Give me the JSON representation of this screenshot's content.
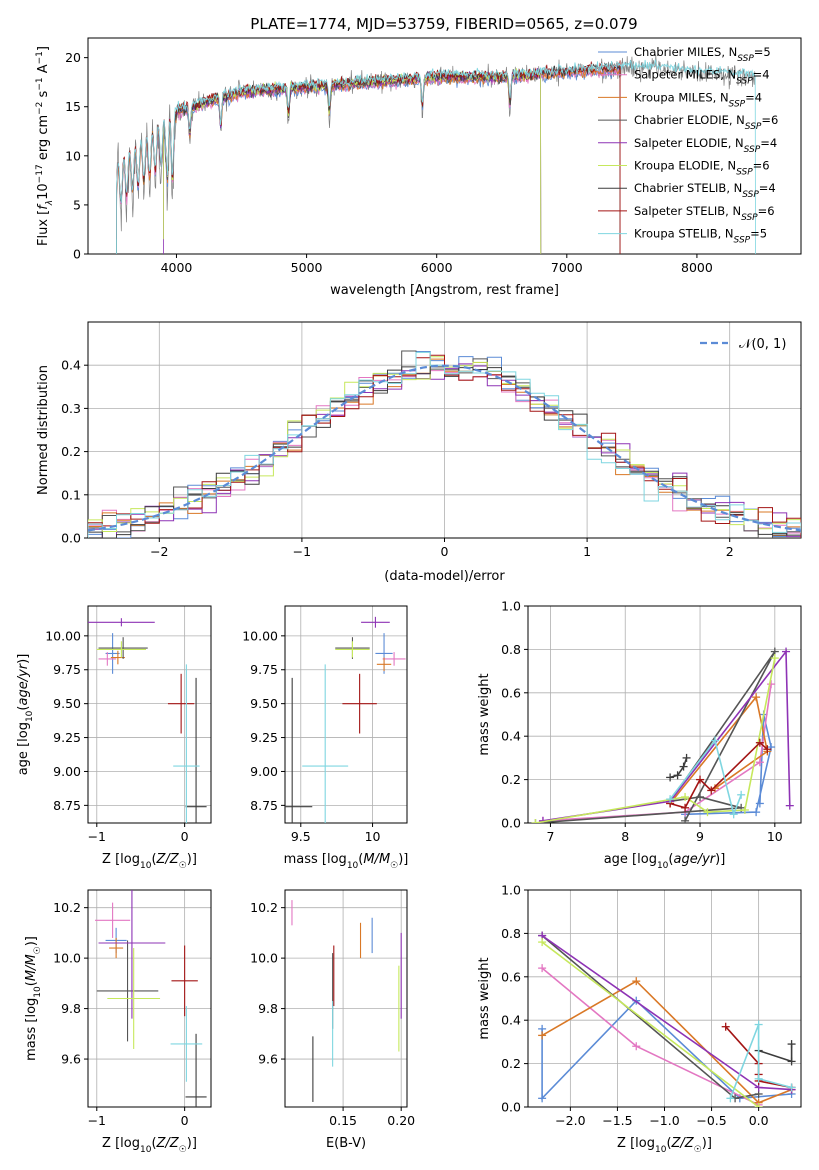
{
  "figure_title": "PLATE=1774, MJD=53759, FIBERID=0565, z=0.079",
  "colors": [
    "#5b8bd6",
    "#e377c2",
    "#d97826",
    "#555555",
    "#8e33b5",
    "#c6e85c",
    "#3c3c3c",
    "#a31515",
    "#7fd6e0"
  ],
  "chart_data": [
    {
      "id": "spectrum",
      "type": "line",
      "xlabel": "wavelength [Angstrom, rest frame]",
      "ylabel": "Flux [fλ10⁻¹⁷ erg cm⁻² s⁻¹ A⁻¹]",
      "xlim": [
        3320,
        8800
      ],
      "ylim": [
        0,
        22
      ],
      "xticks": [
        4000,
        5000,
        6000,
        7000,
        8000
      ],
      "yticks": [
        0,
        5,
        10,
        15,
        20
      ],
      "legend_position": "top-right",
      "series": [
        {
          "name": "Chabrier MILES, N_SSP=5",
          "color": "#5b8bd6",
          "range": [
            3540,
            7410
          ]
        },
        {
          "name": "Salpeter MILES, N_SSP=4",
          "color": "#e377c2",
          "range": [
            3540,
            7410
          ]
        },
        {
          "name": "Kroupa MILES, N_SSP=4",
          "color": "#d97826",
          "range": [
            3540,
            7410
          ]
        },
        {
          "name": "Chabrier ELODIE, N_SSP=6",
          "color": "#555555",
          "range": [
            3900,
            6800
          ]
        },
        {
          "name": "Salpeter ELODIE, N_SSP=4",
          "color": "#8e33b5",
          "range": [
            3900,
            6800
          ]
        },
        {
          "name": "Kroupa ELODIE, N_SSP=6",
          "color": "#c6e85c",
          "range": [
            3900,
            6800
          ]
        },
        {
          "name": "Chabrier STELIB, N_SSP=4",
          "color": "#3c3c3c",
          "range": [
            3540,
            7410
          ]
        },
        {
          "name": "Salpeter STELIB, N_SSP=6",
          "color": "#a31515",
          "range": [
            3540,
            7410
          ]
        },
        {
          "name": "Kroupa STELIB, N_SSP=5",
          "color": "#7fd6e0",
          "range": [
            3540,
            8450
          ]
        }
      ],
      "data_range": [
        3540,
        8450
      ],
      "data_flux_level": [
        [
          3540,
          9
        ],
        [
          3800,
          12
        ],
        [
          4000,
          14.5
        ],
        [
          4500,
          16.5
        ],
        [
          5000,
          17
        ],
        [
          5500,
          17.5
        ],
        [
          6000,
          18
        ],
        [
          6500,
          18
        ],
        [
          7000,
          18.5
        ],
        [
          7500,
          19
        ],
        [
          8000,
          18.5
        ],
        [
          8450,
          18
        ]
      ]
    },
    {
      "id": "residuals",
      "type": "histogram",
      "xlabel": "(data-model)/error",
      "ylabel": "Normed distribution",
      "xlim": [
        -2.5,
        2.5
      ],
      "ylim": [
        0,
        0.5
      ],
      "xticks": [
        -2,
        -1,
        0,
        1,
        2
      ],
      "yticks": [
        0.0,
        0.1,
        0.2,
        0.3,
        0.4
      ],
      "bin_width": 0.1,
      "reference_curve": "N(0,1)",
      "legend": "𝒩(0, 1)",
      "legend_position": "top-right"
    },
    {
      "id": "age-vs-Z",
      "type": "errorbar",
      "xlabel": "Z [log₁₀(Z/Z☉)]",
      "ylabel": "age  [log₁₀(age/yr)]",
      "xlim": [
        -1.1,
        0.3
      ],
      "ylim": [
        8.62,
        10.22
      ],
      "xticks": [
        -1,
        0
      ],
      "yticks": [
        8.75,
        9.0,
        9.25,
        9.5,
        9.75,
        10.0
      ],
      "points": [
        {
          "color": "#5b8bd6",
          "x": -0.82,
          "xerr": 0.08,
          "y": 9.87,
          "yerr": 0.15
        },
        {
          "color": "#e377c2",
          "x": -0.88,
          "xerr": 0.1,
          "y": 9.83,
          "yerr": 0.05
        },
        {
          "color": "#d97826",
          "x": -0.76,
          "xerr": 0.08,
          "y": 9.84,
          "yerr": 0.05
        },
        {
          "color": "#555555",
          "x": -0.7,
          "xerr": 0.28,
          "y": 9.91,
          "yerr": 0.08
        },
        {
          "color": "#8e33b5",
          "x": -0.72,
          "xerr": 0.38,
          "y": 10.1,
          "yerr": 0.03
        },
        {
          "color": "#c6e85c",
          "x": -0.72,
          "xerr": 0.28,
          "y": 9.9,
          "yerr": 0.06
        },
        {
          "color": "#3c3c3c",
          "x": 0.13,
          "xerr": 0.12,
          "y": 8.74,
          "yerr": 0.95
        },
        {
          "color": "#a31515",
          "x": -0.04,
          "xerr": 0.15,
          "y": 9.5,
          "yerr": 0.22
        },
        {
          "color": "#7fd6e0",
          "x": 0.02,
          "xerr": 0.15,
          "y": 9.04,
          "yerr": 0.75
        }
      ]
    },
    {
      "id": "age-vs-mass",
      "type": "errorbar",
      "xlabel": "mass [log₁₀(M/M☉)]",
      "xlim": [
        9.39,
        10.24
      ],
      "ylim": [
        8.62,
        10.22
      ],
      "xticks": [
        9.5,
        10.0
      ],
      "yticks": [
        8.75,
        9.0,
        9.25,
        9.5,
        9.75,
        10.0
      ],
      "points": [
        {
          "color": "#5b8bd6",
          "x": 10.08,
          "xerr": 0.06,
          "y": 9.87,
          "yerr": 0.15
        },
        {
          "color": "#e377c2",
          "x": 10.15,
          "xerr": 0.08,
          "y": 9.83,
          "yerr": 0.05
        },
        {
          "color": "#d97826",
          "x": 10.08,
          "xerr": 0.05,
          "y": 9.79,
          "yerr": 0.05
        },
        {
          "color": "#555555",
          "x": 9.86,
          "xerr": 0.12,
          "y": 9.91,
          "yerr": 0.08
        },
        {
          "color": "#8e33b5",
          "x": 10.02,
          "xerr": 0.1,
          "y": 10.1,
          "yerr": 0.04
        },
        {
          "color": "#c6e85c",
          "x": 9.86,
          "xerr": 0.12,
          "y": 9.9,
          "yerr": 0.06
        },
        {
          "color": "#3c3c3c",
          "x": 9.44,
          "xerr": 0.14,
          "y": 8.74,
          "yerr": 0.95
        },
        {
          "color": "#a31515",
          "x": 9.91,
          "xerr": 0.12,
          "y": 9.5,
          "yerr": 0.22
        },
        {
          "color": "#7fd6e0",
          "x": 9.67,
          "xerr": 0.16,
          "y": 9.04,
          "yerr": 0.75
        }
      ]
    },
    {
      "id": "weight-vs-age",
      "type": "line",
      "xlabel": "age  [log₁₀(age/yr)]",
      "ylabel": "mass weight",
      "xlim": [
        6.7,
        10.35
      ],
      "ylim": [
        0,
        1.0
      ],
      "xticks": [
        7,
        8,
        9,
        10
      ],
      "yticks": [
        0.0,
        0.2,
        0.4,
        0.6,
        0.8,
        1.0
      ],
      "series": [
        {
          "color": "#5b8bd6",
          "x": [
            8.8,
            9.75,
            9.95,
            9.85,
            9.8
          ],
          "y": [
            0.04,
            0.05,
            0.35,
            0.5,
            0.09
          ]
        },
        {
          "color": "#e377c2",
          "x": [
            6.9,
            8.8,
            9.8,
            9.95
          ],
          "y": [
            0.01,
            0.05,
            0.28,
            0.64
          ]
        },
        {
          "color": "#d97826",
          "x": [
            8.6,
            9.75,
            9.9,
            9.2
          ],
          "y": [
            0.09,
            0.58,
            0.33,
            0.16
          ]
        },
        {
          "color": "#555555",
          "x": [
            6.8,
            9.55,
            9.0,
            8.6,
            10.0,
            8.8
          ],
          "y": [
            0.0,
            0.07,
            0.12,
            0.1,
            0.79,
            0.01
          ]
        },
        {
          "color": "#8e33b5",
          "x": [
            6.9,
            8.6,
            10.15,
            10.2
          ],
          "y": [
            0.01,
            0.1,
            0.79,
            0.08
          ]
        },
        {
          "color": "#c6e85c",
          "x": [
            6.8,
            8.8,
            9.1,
            9.6,
            10.0
          ],
          "y": [
            0.0,
            0.12,
            0.05,
            0.06,
            0.76
          ]
        },
        {
          "color": "#3c3c3c",
          "x": [
            8.6,
            8.7,
            8.78,
            8.82
          ],
          "y": [
            0.21,
            0.22,
            0.26,
            0.3
          ]
        },
        {
          "color": "#a31515",
          "x": [
            8.6,
            8.8,
            9.0,
            9.15,
            9.8,
            9.9
          ],
          "y": [
            0.09,
            0.07,
            0.2,
            0.15,
            0.37,
            0.34
          ]
        },
        {
          "color": "#7fd6e0",
          "x": [
            8.6,
            9.2,
            9.45,
            9.55
          ],
          "y": [
            0.11,
            0.38,
            0.04,
            0.13
          ]
        }
      ]
    },
    {
      "id": "mass-vs-Z",
      "type": "errorbar",
      "xlabel": "Z [log₁₀(Z/Z☉)]",
      "ylabel": "mass [log₁₀(M/M☉)]",
      "xlim": [
        -1.1,
        0.3
      ],
      "ylim": [
        9.41,
        10.27
      ],
      "xticks": [
        -1,
        0
      ],
      "yticks": [
        9.6,
        9.8,
        10.0,
        10.2
      ],
      "points": [
        {
          "color": "#5b8bd6",
          "x": -0.78,
          "xerr": 0.12,
          "y": 10.07,
          "yerr": 0.05
        },
        {
          "color": "#e377c2",
          "x": -0.82,
          "xerr": 0.2,
          "y": 10.15,
          "yerr": 0.07
        },
        {
          "color": "#d97826",
          "x": -0.78,
          "xerr": 0.08,
          "y": 10.04,
          "yerr": 0.04
        },
        {
          "color": "#555555",
          "x": -0.65,
          "xerr": 0.35,
          "y": 9.87,
          "yerr": 0.2
        },
        {
          "color": "#8e33b5",
          "x": -0.6,
          "xerr": 0.38,
          "y": 10.06,
          "yerr": 0.3
        },
        {
          "color": "#c6e85c",
          "x": -0.58,
          "xerr": 0.3,
          "y": 9.84,
          "yerr": 0.2
        },
        {
          "color": "#3c3c3c",
          "x": 0.13,
          "xerr": 0.12,
          "y": 9.45,
          "yerr": 0.25
        },
        {
          "color": "#a31515",
          "x": 0.0,
          "xerr": 0.15,
          "y": 9.91,
          "yerr": 0.14
        },
        {
          "color": "#7fd6e0",
          "x": 0.02,
          "xerr": 0.18,
          "y": 9.66,
          "yerr": 0.15
        }
      ]
    },
    {
      "id": "mass-vs-ebv",
      "type": "errorbar",
      "xlabel": "E(B-V)",
      "xlim": [
        0.1,
        0.205
      ],
      "ylim": [
        9.41,
        10.27
      ],
      "xticks": [
        0.15,
        0.2
      ],
      "xtick_labels": [
        "0.15",
        "0.20"
      ],
      "yticks": [
        9.6,
        9.8,
        10.0,
        10.2
      ],
      "points": [
        {
          "color": "#5b8bd6",
          "x": 0.175,
          "xerr": 0,
          "y": 10.09,
          "yerr": 0.07
        },
        {
          "color": "#e377c2",
          "x": 0.106,
          "xerr": 0,
          "y": 10.18,
          "yerr": 0.05
        },
        {
          "color": "#d97826",
          "x": 0.165,
          "xerr": 0,
          "y": 10.07,
          "yerr": 0.07
        },
        {
          "color": "#555555",
          "x": 0.141,
          "xerr": 0,
          "y": 9.87,
          "yerr": 0.15
        },
        {
          "color": "#8e33b5",
          "x": 0.2,
          "xerr": 0,
          "y": 9.93,
          "yerr": 0.17
        },
        {
          "color": "#c6e85c",
          "x": 0.198,
          "xerr": 0,
          "y": 9.8,
          "yerr": 0.17
        },
        {
          "color": "#3c3c3c",
          "x": 0.124,
          "xerr": 0,
          "y": 9.56,
          "yerr": 0.13
        },
        {
          "color": "#a31515",
          "x": 0.142,
          "xerr": 0,
          "y": 9.93,
          "yerr": 0.12
        },
        {
          "color": "#7fd6e0",
          "x": 0.141,
          "xerr": 0,
          "y": 9.7,
          "yerr": 0.13
        }
      ]
    },
    {
      "id": "weight-vs-Z",
      "type": "line",
      "xlabel": "Z [log₁₀(Z/Z☉)]",
      "ylabel": "mass weight",
      "xlim": [
        -2.45,
        0.45
      ],
      "ylim": [
        0,
        1.0
      ],
      "xticks": [
        -2.0,
        -1.5,
        -1.0,
        -0.5,
        0.0
      ],
      "xtick_labels": [
        "−2.0",
        "−1.5",
        "−1.0",
        "−0.5",
        "0.0"
      ],
      "yticks": [
        0.0,
        0.2,
        0.4,
        0.6,
        0.8,
        1.0
      ],
      "series": [
        {
          "color": "#5b8bd6",
          "x": [
            -2.3,
            -2.3,
            -1.3,
            -0.2,
            0.35
          ],
          "y": [
            0.36,
            0.04,
            0.49,
            0.04,
            0.06
          ]
        },
        {
          "color": "#e377c2",
          "x": [
            -2.3,
            -1.3,
            0.0
          ],
          "y": [
            0.64,
            0.28,
            0.01
          ]
        },
        {
          "color": "#d97826",
          "x": [
            -2.3,
            -1.3,
            0.0,
            0.35
          ],
          "y": [
            0.33,
            0.58,
            0.02,
            0.08
          ]
        },
        {
          "color": "#555555",
          "x": [
            -2.3,
            -0.25,
            0.0
          ],
          "y": [
            0.79,
            0.04,
            0.06
          ]
        },
        {
          "color": "#8e33b5",
          "x": [
            -2.3,
            0.0,
            0.35
          ],
          "y": [
            0.79,
            0.09,
            0.08
          ]
        },
        {
          "color": "#c6e85c",
          "x": [
            -2.3,
            0.0
          ],
          "y": [
            0.76,
            0.0
          ]
        },
        {
          "color": "#3c3c3c",
          "x": [
            0.0,
            0.35,
            0.35
          ],
          "y": [
            0.26,
            0.21,
            0.29
          ]
        },
        {
          "color": "#a31515",
          "x": [
            -0.35,
            0.0,
            0.0,
            0.0,
            0.35
          ],
          "y": [
            0.37,
            0.2,
            0.15,
            0.12,
            0.09
          ]
        },
        {
          "color": "#7fd6e0",
          "x": [
            -0.3,
            0.0,
            0.0,
            0.35
          ],
          "y": [
            0.04,
            0.38,
            0.13,
            0.09
          ]
        }
      ]
    }
  ]
}
